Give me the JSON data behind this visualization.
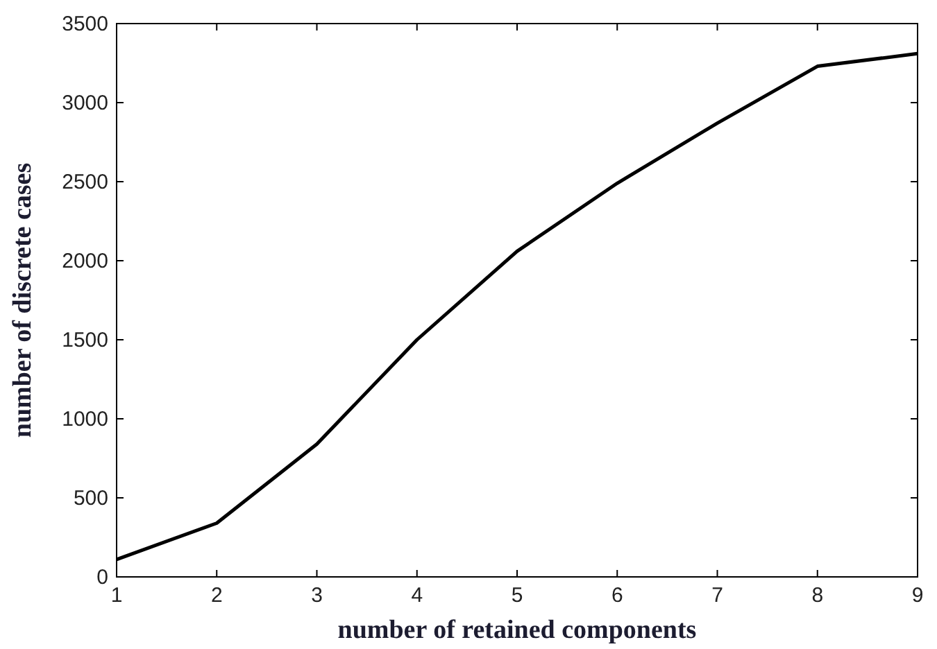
{
  "chart_data": {
    "type": "line",
    "xlabel": "number of retained components",
    "ylabel": "number of discrete cases",
    "x": [
      1,
      2,
      3,
      4,
      5,
      6,
      7,
      8,
      9
    ],
    "series": [
      {
        "color": "#000000",
        "values": [
          110,
          340,
          840,
          1500,
          2060,
          2490,
          2870,
          3230,
          3310
        ]
      }
    ],
    "xlim": [
      1,
      9
    ],
    "ylim": [
      0,
      3500
    ],
    "xticks": [
      1,
      2,
      3,
      4,
      5,
      6,
      7,
      8,
      9
    ],
    "yticks": [
      0,
      500,
      1000,
      1500,
      2000,
      2500,
      3000,
      3500
    ],
    "grid": false,
    "marker": "none",
    "line_style": "solid"
  }
}
